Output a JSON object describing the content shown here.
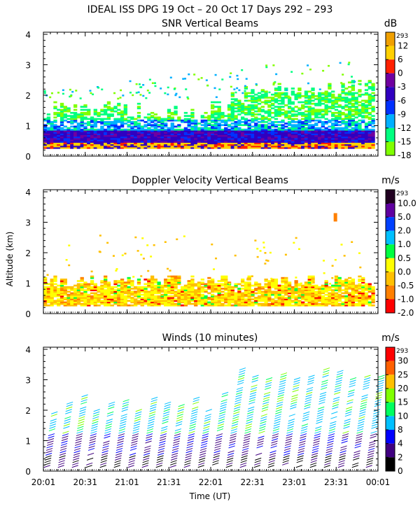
{
  "header": {
    "line1": "IDEAL ISS DPG  19 Oct – 20 Oct 17 Days 292 – 293"
  },
  "shared_axes": {
    "ylabel": "Altitude (km)",
    "xlabel": "Time (UT)",
    "xticks": [
      "20:01",
      "20:31",
      "21:01",
      "21:31",
      "22:01",
      "22:31",
      "23:01",
      "23:31",
      "00:01"
    ],
    "yticks": [
      "0",
      "1",
      "2",
      "3",
      "4"
    ]
  },
  "chart_data": [
    {
      "type": "heatmap",
      "title": "SNR Vertical Beams",
      "colorbar_unit": "dB",
      "colorbar_tag": "293",
      "colorbar_labels": [
        "12",
        "6",
        "0",
        "-3",
        "-6",
        "-9",
        "-12",
        "-15",
        "-18"
      ],
      "colors": [
        "#f0a000",
        "#ffd000",
        "#ff2000",
        "#7000a0",
        "#3000c0",
        "#0030ff",
        "#00b0ff",
        "#00ff80",
        "#80ff00"
      ],
      "ylim": [
        0,
        4
      ],
      "xlim_hours": [
        0,
        4
      ],
      "summary_layers": [
        {
          "from_km": 0.25,
          "to_km": 0.4,
          "level": "6"
        },
        {
          "from_km": 0.4,
          "to_km": 0.8,
          "level": "-6"
        },
        {
          "from_km": 0.8,
          "to_km": 1.4,
          "level": "-12"
        },
        {
          "from_km": 1.4,
          "to_km": 2.2,
          "level": "-15"
        }
      ]
    },
    {
      "type": "heatmap",
      "title": "Doppler Velocity Vertical Beams",
      "colorbar_unit": "m/s",
      "colorbar_tag": "293",
      "colorbar_labels": [
        "10.0",
        "5.0",
        "2.0",
        "1.0",
        "0.5",
        "0.0",
        "-0.5",
        "-1.0",
        "-2.0"
      ],
      "colors": [
        "#200020",
        "#6000a0",
        "#0040ff",
        "#00c0ff",
        "#00ff40",
        "#ffff00",
        "#ffc000",
        "#ff8000",
        "#ff0000"
      ],
      "ylim": [
        0,
        4
      ],
      "xlim_hours": [
        0,
        4
      ]
    },
    {
      "type": "scatter",
      "title": "Winds (10 minutes)",
      "colorbar_unit": "m/s",
      "colorbar_tag": "293",
      "colorbar_labels": [
        "30",
        "25",
        "20",
        "15",
        "10",
        "8",
        "4",
        "2",
        "0"
      ],
      "colors": [
        "#ff0000",
        "#ff6000",
        "#ffc000",
        "#80ff00",
        "#00ff60",
        "#00c0ff",
        "#0000ff",
        "#400080",
        "#000000"
      ],
      "ylim": [
        0,
        4
      ],
      "xlim_hours": [
        0,
        4
      ]
    }
  ]
}
